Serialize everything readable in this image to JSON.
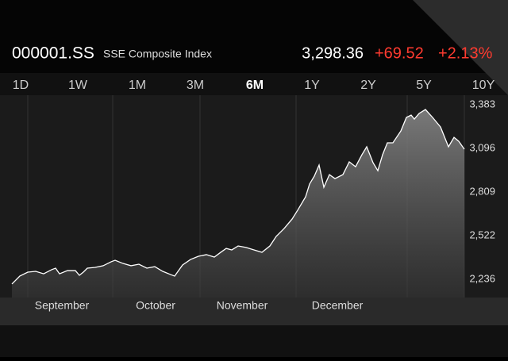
{
  "header": {
    "symbol": "000001.SS",
    "name": "SSE Composite Index",
    "price": "3,298.36",
    "change": "+69.52",
    "change_percent": "+2.13%"
  },
  "tabs": {
    "items": [
      "1D",
      "1W",
      "1M",
      "3M",
      "6M",
      "1Y",
      "2Y",
      "5Y",
      "10Y"
    ],
    "selected": 4
  },
  "chart_data": {
    "type": "area",
    "color": "#ffffff",
    "x": [
      0,
      2,
      4,
      6,
      8,
      10,
      11,
      12,
      14,
      16,
      17,
      18,
      19,
      21,
      23,
      25,
      26,
      28,
      30,
      32,
      34,
      36,
      38,
      40,
      41,
      43,
      45,
      47,
      49,
      51,
      52.6,
      54,
      55.4,
      57,
      59,
      61,
      63,
      65,
      66.6,
      68.6,
      70.6,
      72,
      74,
      75,
      76.2,
      77.4,
      78.6,
      80,
      81.4,
      83.4,
      85,
      86.6,
      88.2,
      89.4,
      91,
      92.2,
      93.4,
      94.6,
      96,
      98,
      99.4,
      100.6,
      101.4,
      102.6,
      104.2,
      106,
      108,
      110,
      111.4,
      112.6,
      114
    ],
    "values": [
      2205,
      2257,
      2283,
      2288,
      2272,
      2299,
      2309,
      2272,
      2293,
      2293,
      2262,
      2283,
      2309,
      2314,
      2325,
      2351,
      2361,
      2340,
      2325,
      2335,
      2309,
      2319,
      2288,
      2267,
      2257,
      2330,
      2366,
      2387,
      2398,
      2382,
      2413,
      2439,
      2429,
      2455,
      2445,
      2429,
      2413,
      2455,
      2518,
      2570,
      2632,
      2690,
      2778,
      2862,
      2914,
      2987,
      2841,
      2924,
      2898,
      2924,
      3008,
      2976,
      3055,
      3107,
      3002,
      2950,
      3055,
      3133,
      3133,
      3211,
      3300,
      3315,
      3289,
      3326,
      3352,
      3300,
      3237,
      3107,
      3169,
      3143,
      3091
    ],
    "xlim": [
      0,
      114
    ],
    "ylim": [
      2116,
      3446
    ],
    "yticks": [
      {
        "value": 3383,
        "label": "3,383"
      },
      {
        "value": 3096,
        "label": "3,096"
      },
      {
        "value": 2809,
        "label": "2,809"
      },
      {
        "value": 2522,
        "label": "2,522"
      },
      {
        "value": 2236,
        "label": "2,236"
      }
    ],
    "x_grid": [
      4,
      25.4,
      47.4,
      71.6,
      99.6
    ],
    "xticks": [
      {
        "value": 12.6,
        "label": "September"
      },
      {
        "value": 36.2,
        "label": "October"
      },
      {
        "value": 58,
        "label": "November"
      },
      {
        "value": 82,
        "label": "December"
      }
    ],
    "grid": true
  }
}
